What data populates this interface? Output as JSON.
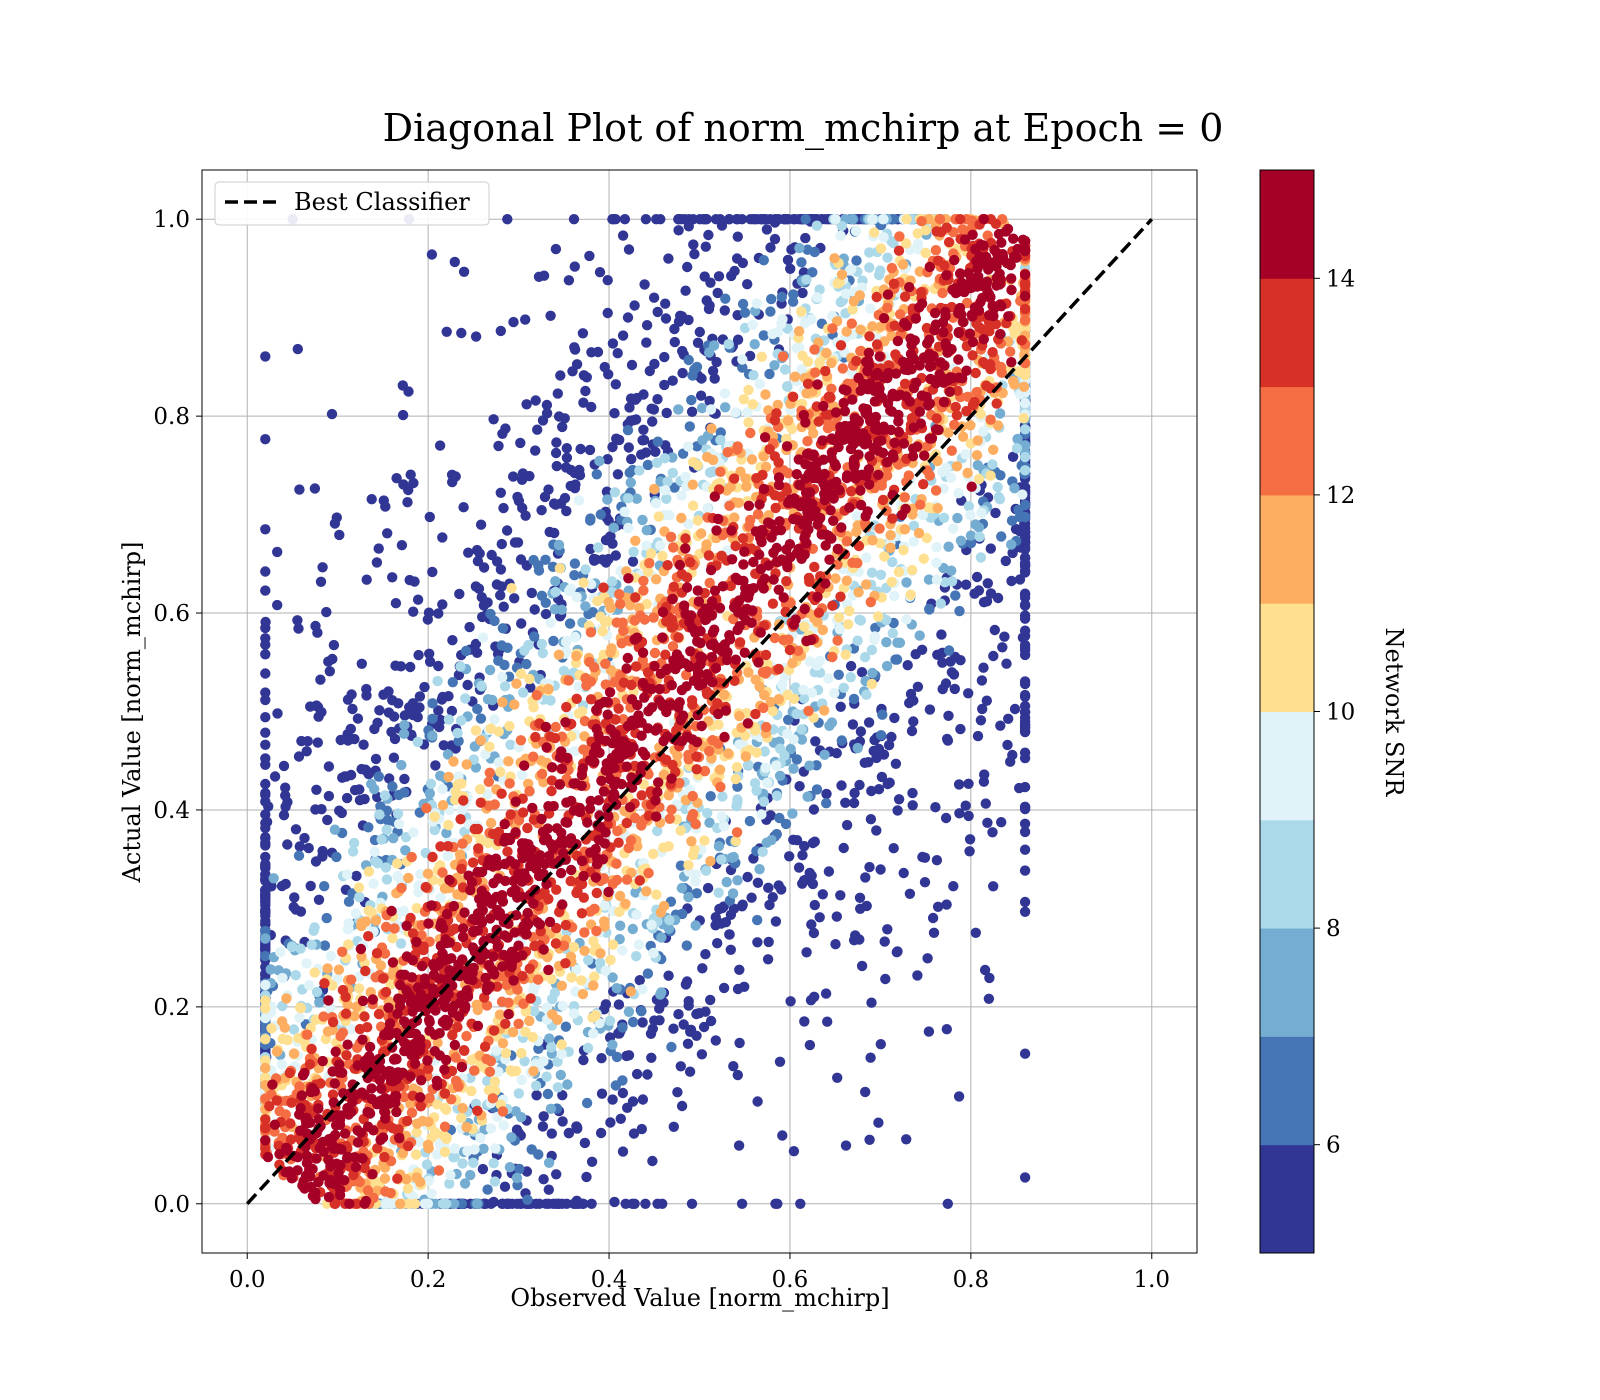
{
  "chart_data": {
    "type": "scatter",
    "title": "Diagonal Plot of norm_mchirp at Epoch = 0",
    "xlabel": "Observed Value [norm_mchirp]",
    "ylabel": "Actual Value [norm_mchirp]",
    "xlim": [
      -0.05,
      1.05
    ],
    "ylim": [
      -0.05,
      1.05
    ],
    "xticks": [
      0.0,
      0.2,
      0.4,
      0.6,
      0.8,
      1.0
    ],
    "yticks": [
      0.0,
      0.2,
      0.4,
      0.6,
      0.8,
      1.0
    ],
    "xtick_labels": [
      "0.0",
      "0.2",
      "0.4",
      "0.6",
      "0.8",
      "1.0"
    ],
    "ytick_labels": [
      "0.0",
      "0.2",
      "0.4",
      "0.6",
      "0.8",
      "1.0"
    ],
    "grid": true,
    "reference_line": {
      "name": "Best Classifier",
      "style": "dashed",
      "color": "#000000",
      "x": [
        0.0,
        1.0
      ],
      "y": [
        0.0,
        1.0
      ]
    },
    "legend": {
      "position": "top-left",
      "entries": [
        "Best Classifier"
      ]
    },
    "colorbar": {
      "label": "Network SNR",
      "range": [
        5,
        15
      ],
      "ticks": [
        6,
        8,
        10,
        12,
        14
      ],
      "tick_labels": [
        "6",
        "8",
        "10",
        "12",
        "14"
      ],
      "colors": [
        "#313695",
        "#4575b4",
        "#74add1",
        "#abd9e9",
        "#e0f3f8",
        "#fee090",
        "#fdae61",
        "#f46d43",
        "#d73027",
        "#a50026"
      ]
    },
    "point_color": "Network SNR",
    "point_size": "medium"
  }
}
